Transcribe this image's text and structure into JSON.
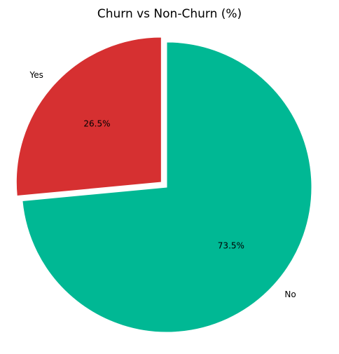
{
  "chart_data": {
    "type": "pie",
    "title": "Churn vs Non-Churn (%)",
    "labels": [
      "No",
      "Yes"
    ],
    "values": [
      73.5,
      26.5
    ],
    "pct_labels": [
      "73.5%",
      "26.5%"
    ],
    "colors": [
      "#00b894",
      "#d63031"
    ],
    "explode": [
      0,
      0.05
    ],
    "start_angle_deg": 90,
    "direction": "clockwise"
  }
}
